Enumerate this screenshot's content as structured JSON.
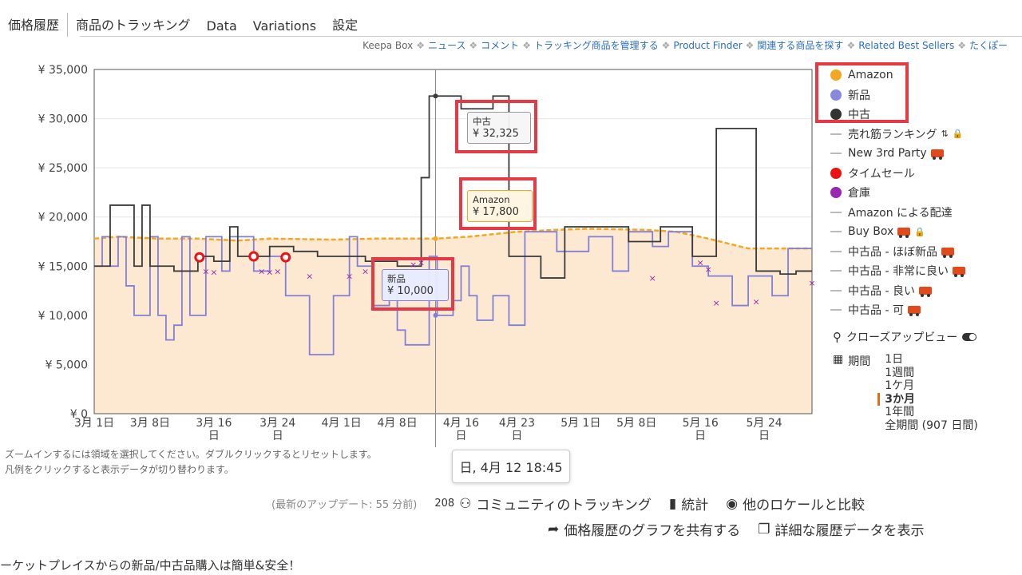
{
  "tabs": [
    "価格履歴",
    "商品のトラッキング",
    "Data",
    "Variations",
    "設定"
  ],
  "subnav": [
    {
      "label": "Keepa Box",
      "link": false
    },
    {
      "label": "ニュース",
      "link": true
    },
    {
      "label": "コメント",
      "link": true
    },
    {
      "label": "トラッキング商品を管理する",
      "link": true
    },
    {
      "label": "Product Finder",
      "link": true
    },
    {
      "label": "関連する商品を探す",
      "link": true
    },
    {
      "label": "Related Best Sellers",
      "link": true
    },
    {
      "label": "たくぽー",
      "link": true
    }
  ],
  "legend": [
    {
      "label": "Amazon",
      "kind": "dot",
      "color": "#f5a623"
    },
    {
      "label": "新品",
      "kind": "dot",
      "color": "#8888dd"
    },
    {
      "label": "中古",
      "kind": "dot",
      "color": "#333333"
    },
    {
      "label": "売れ筋ランキング",
      "kind": "dash",
      "extra": "sort-lock"
    },
    {
      "label": "New 3rd Party",
      "kind": "dash",
      "extra": "truck"
    },
    {
      "label": "タイムセール",
      "kind": "dot",
      "color": "#ee1111"
    },
    {
      "label": "倉庫",
      "kind": "dot",
      "color": "#9b27af"
    },
    {
      "label": "Amazon による配達",
      "kind": "dash"
    },
    {
      "label": "Buy Box",
      "kind": "dash",
      "extra": "truck-lock"
    },
    {
      "label": "中古品 - ほぼ新品",
      "kind": "dash",
      "extra": "truck"
    },
    {
      "label": "中古品 - 非常に良い",
      "kind": "dash",
      "extra": "truck"
    },
    {
      "label": "中古品 - 良い",
      "kind": "dash",
      "extra": "truck"
    },
    {
      "label": "中古品 - 可",
      "kind": "dash",
      "extra": "truck"
    }
  ],
  "closeup_label": "クローズアップビュー",
  "period": {
    "label": "期間",
    "options": [
      "1日",
      "1週間",
      "1ケ月",
      "3か月",
      "1年間",
      "全期間 (907 日間)"
    ],
    "selected": "3か月"
  },
  "tooltips": {
    "used": {
      "label": "中古",
      "value": "¥ 32,325"
    },
    "amazon": {
      "label": "Amazon",
      "value": "¥ 17,800"
    },
    "new": {
      "label": "新品",
      "value": "¥ 10,000"
    }
  },
  "hover_time": "日, 4月 12 18:45",
  "hint_lines": [
    "ズームインするには領域を選択してください。ダブルクリックするとリセットします。",
    "凡例をクリックすると表示データが切り替わります。"
  ],
  "footer": {
    "last_update": "(最新のアップデート: 55 分前)",
    "community_count": "208",
    "community_label": "コミュニティのトラッキング",
    "stats_label": "統計",
    "compare_label": "他のロケールと比較",
    "share_label": "価格履歴のグラフを共有する",
    "detail_label": "詳細な履歴データを表示"
  },
  "bottom_text": "ーケットプレイスからの新品/中古品購入は簡単&安全！",
  "chart_data": {
    "type": "line",
    "y_ticks": [
      "¥ 0",
      "¥ 5,000",
      "¥ 10,000",
      "¥ 15,000",
      "¥ 20,000",
      "¥ 25,000",
      "¥ 30,000",
      "¥ 35,000"
    ],
    "ylim": [
      0,
      35000
    ],
    "x_ticks": [
      {
        "day": 0,
        "label": "3月 1日"
      },
      {
        "day": 7,
        "label": "3月 8日"
      },
      {
        "day": 15,
        "label": "3月 16",
        "sub": "日"
      },
      {
        "day": 23,
        "label": "3月 24",
        "sub": "日"
      },
      {
        "day": 31,
        "label": "4月 1日"
      },
      {
        "day": 38,
        "label": "4月 8日"
      },
      {
        "day": 46,
        "label": "4月 16",
        "sub": "日"
      },
      {
        "day": 53,
        "label": "4月 23",
        "sub": "日"
      },
      {
        "day": 61,
        "label": "5月 1日"
      },
      {
        "day": 68,
        "label": "5月 8日"
      },
      {
        "day": 76,
        "label": "5月 16",
        "sub": "日"
      },
      {
        "day": 84,
        "label": "5月 24",
        "sub": "日"
      }
    ],
    "xlim": [
      0,
      90
    ],
    "hover_day": 42.8,
    "series": [
      {
        "name": "Amazon",
        "color": "#f5a623",
        "style": "dashed",
        "values": [
          [
            0,
            17800
          ],
          [
            3,
            18000
          ],
          [
            8,
            17800
          ],
          [
            13,
            17800
          ],
          [
            18,
            17600
          ],
          [
            22,
            17800
          ],
          [
            30,
            17700
          ],
          [
            35,
            17800
          ],
          [
            41,
            17800
          ],
          [
            42.8,
            17800
          ],
          [
            47,
            18000
          ],
          [
            53,
            18500
          ],
          [
            58,
            18700
          ],
          [
            62,
            18800
          ],
          [
            69,
            18700
          ],
          [
            73,
            18500
          ],
          [
            77,
            17800
          ],
          [
            82,
            16800
          ],
          [
            86,
            16800
          ],
          [
            90,
            16800
          ]
        ]
      },
      {
        "name": "新品",
        "color": "#8080d8",
        "style": "step",
        "values": [
          [
            0,
            15000
          ],
          [
            1,
            18000
          ],
          [
            2,
            15000
          ],
          [
            3,
            18000
          ],
          [
            4,
            13000
          ],
          [
            5,
            10000
          ],
          [
            7,
            18000
          ],
          [
            8,
            10000
          ],
          [
            9,
            7500
          ],
          [
            10,
            9000
          ],
          [
            11,
            18000
          ],
          [
            12,
            10000
          ],
          [
            14,
            18000
          ],
          [
            16,
            14500
          ],
          [
            17,
            18000
          ],
          [
            20,
            14500
          ],
          [
            22,
            16000
          ],
          [
            24,
            12000
          ],
          [
            27,
            6000
          ],
          [
            30,
            12000
          ],
          [
            32,
            18000
          ],
          [
            33,
            15000
          ],
          [
            35,
            11000
          ],
          [
            37,
            13500
          ],
          [
            38,
            8500
          ],
          [
            39,
            7000
          ],
          [
            42,
            16000
          ],
          [
            43,
            10000
          ],
          [
            45,
            11500
          ],
          [
            46,
            15000
          ],
          [
            47,
            12000
          ],
          [
            48,
            9500
          ],
          [
            50,
            12000
          ],
          [
            52,
            9000
          ],
          [
            54,
            18500
          ],
          [
            58,
            16500
          ],
          [
            62,
            18000
          ],
          [
            65,
            14500
          ],
          [
            67,
            18500
          ],
          [
            70,
            17000
          ],
          [
            72,
            18500
          ],
          [
            75,
            15000
          ],
          [
            77,
            14000
          ],
          [
            80,
            11000
          ],
          [
            82,
            14000
          ],
          [
            85,
            12000
          ],
          [
            87,
            16800
          ],
          [
            90,
            16800
          ]
        ]
      },
      {
        "name": "中古",
        "color": "#3a3a3a",
        "style": "step",
        "values": [
          [
            0,
            15000
          ],
          [
            2,
            21200
          ],
          [
            5,
            15000
          ],
          [
            6,
            21200
          ],
          [
            7,
            15000
          ],
          [
            10,
            14500
          ],
          [
            13,
            16000
          ],
          [
            15,
            15500
          ],
          [
            17,
            19000
          ],
          [
            18,
            16000
          ],
          [
            22,
            17000
          ],
          [
            25,
            16500
          ],
          [
            28,
            16000
          ],
          [
            34,
            15500
          ],
          [
            38,
            15000
          ],
          [
            41,
            24000
          ],
          [
            42,
            32300
          ],
          [
            44,
            32300
          ],
          [
            46,
            31000
          ],
          [
            50,
            32300
          ],
          [
            52,
            16000
          ],
          [
            56,
            13800
          ],
          [
            59,
            19000
          ],
          [
            63,
            19000
          ],
          [
            67,
            17500
          ],
          [
            71,
            19000
          ],
          [
            75,
            16000
          ],
          [
            78,
            29000
          ],
          [
            80,
            29000
          ],
          [
            82,
            29000
          ],
          [
            83,
            14500
          ],
          [
            86,
            14200
          ],
          [
            88,
            14500
          ],
          [
            90,
            14500
          ]
        ]
      }
    ],
    "deal_markers": [
      [
        13.2,
        15900
      ],
      [
        20,
        16000
      ],
      [
        24,
        15900
      ]
    ],
    "warehouse_markers": [
      [
        14,
        14500
      ],
      [
        15,
        14400
      ],
      [
        21,
        14500
      ],
      [
        22,
        14400
      ],
      [
        23,
        14500
      ],
      [
        27,
        14000
      ],
      [
        32,
        14000
      ],
      [
        34,
        14500
      ],
      [
        40,
        15200
      ],
      [
        41,
        15400
      ],
      [
        70,
        13800
      ],
      [
        76,
        15400
      ],
      [
        77,
        14700
      ],
      [
        78,
        11300
      ],
      [
        83,
        11400
      ],
      [
        90,
        13300
      ]
    ]
  }
}
